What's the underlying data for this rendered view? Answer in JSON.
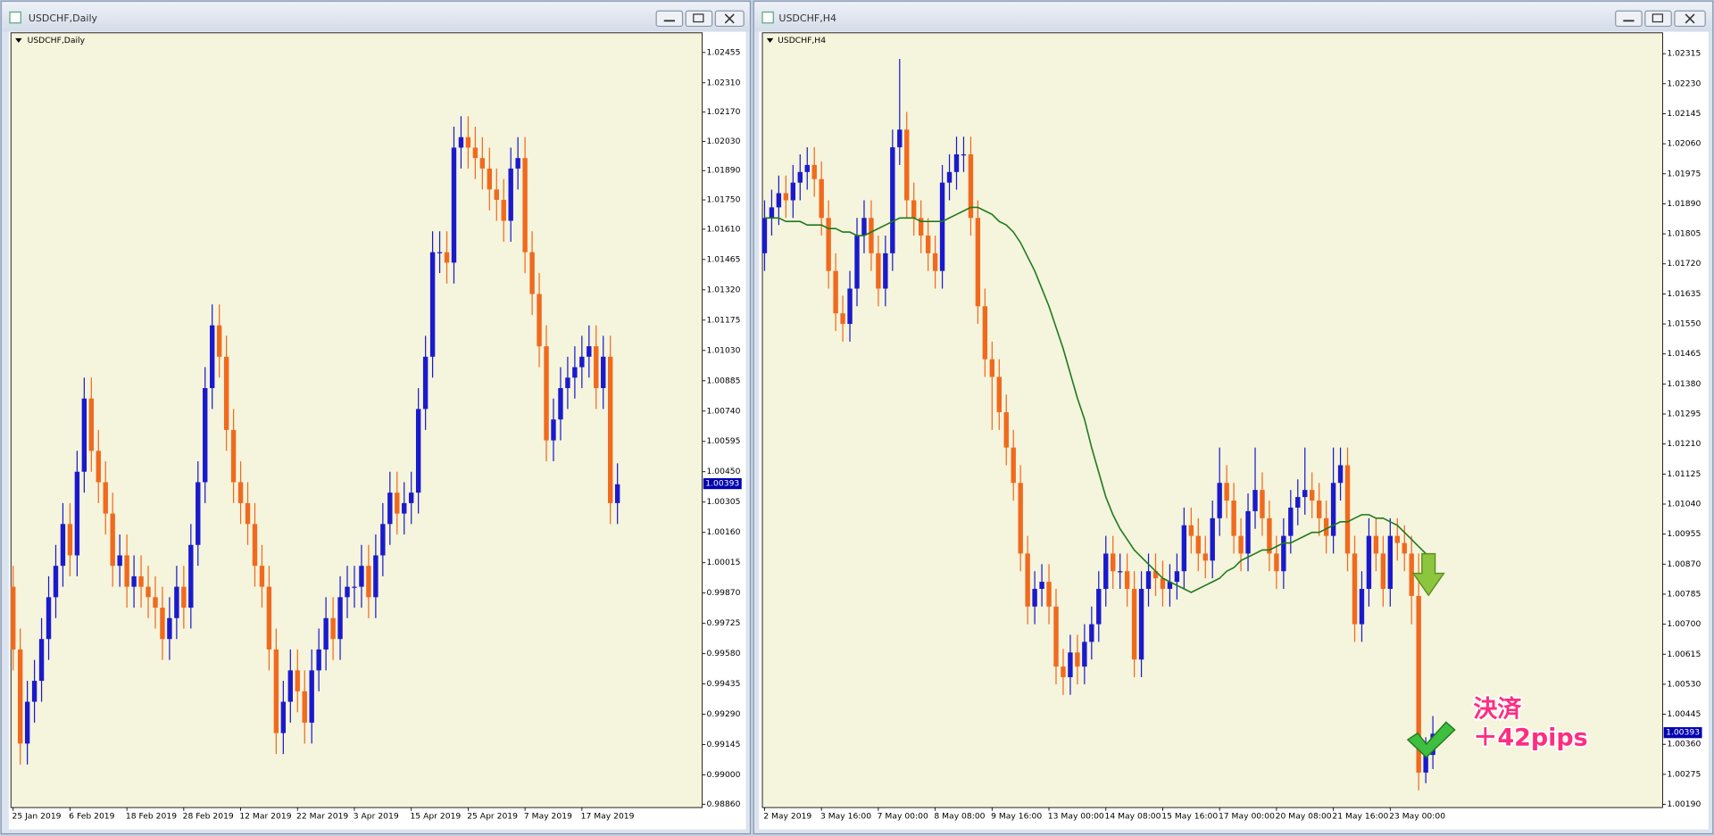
{
  "window_titles": [
    "USDCHF,Daily",
    "USDCHF,H4"
  ],
  "annotation": {
    "lines": [
      "決済",
      "＋42pips"
    ]
  },
  "chart_data": [
    {
      "type": "candlestick",
      "title": "USDCHF,Daily",
      "x": [
        "25 Jan 2019",
        null,
        null,
        null,
        null,
        null,
        null,
        null,
        "6 Feb 2019",
        null,
        null,
        null,
        null,
        null,
        null,
        null,
        "18 Feb 2019",
        null,
        null,
        null,
        null,
        null,
        null,
        null,
        "28 Feb 2019",
        null,
        null,
        null,
        null,
        null,
        null,
        null,
        "12 Mar 2019",
        null,
        null,
        null,
        null,
        null,
        null,
        null,
        "22 Mar 2019",
        null,
        null,
        null,
        null,
        null,
        null,
        null,
        "3 Apr 2019",
        null,
        null,
        null,
        null,
        null,
        null,
        null,
        "15 Apr 2019",
        null,
        null,
        null,
        null,
        null,
        null,
        null,
        "25 Apr 2019",
        null,
        null,
        null,
        null,
        null,
        null,
        null,
        "7 May 2019",
        null,
        null,
        null,
        null,
        null,
        null,
        null,
        "17 May 2019",
        null,
        null,
        null,
        null,
        null
      ],
      "open": [
        0.999,
        0.996,
        0.9915,
        0.9935,
        0.9945,
        0.9965,
        0.9985,
        1.0,
        1.002,
        1.0005,
        1.0045,
        1.008,
        1.0055,
        1.004,
        1.0025,
        1.0,
        1.0005,
        0.999,
        0.9995,
        0.999,
        0.9985,
        0.998,
        0.9965,
        0.9975,
        0.999,
        0.998,
        1.001,
        1.004,
        1.0085,
        1.0115,
        1.01,
        1.0065,
        1.004,
        1.003,
        1.002,
        1.0,
        0.999,
        0.996,
        0.992,
        0.9935,
        0.995,
        0.994,
        0.9925,
        0.995,
        0.996,
        0.9975,
        0.9965,
        0.9985,
        0.999,
        0.999,
        1.0,
        0.9985,
        1.0005,
        1.002,
        1.0035,
        1.0025,
        1.003,
        1.0035,
        1.0075,
        1.01,
        1.015,
        1.015,
        1.0145,
        1.02,
        1.0205,
        1.02,
        1.0195,
        1.019,
        1.018,
        1.0175,
        1.0165,
        1.019,
        1.0195,
        1.015,
        1.013,
        1.0105,
        1.006,
        1.007,
        1.0085,
        1.009,
        1.0095,
        1.01,
        1.0105,
        1.0085,
        1.01,
        1.003
      ],
      "high": [
        1.0,
        0.997,
        0.9945,
        0.9955,
        0.9975,
        0.9995,
        1.001,
        1.003,
        1.003,
        1.0055,
        1.009,
        1.009,
        1.0065,
        1.005,
        1.0035,
        1.0015,
        1.0015,
        1.0005,
        1.0005,
        1.0,
        0.9995,
        0.999,
        0.9985,
        1.0,
        1.0,
        1.002,
        1.005,
        1.0095,
        1.0125,
        1.0125,
        1.011,
        1.0075,
        1.005,
        1.004,
        1.003,
        1.001,
        1.0,
        0.997,
        0.9945,
        0.996,
        0.996,
        0.995,
        0.996,
        0.997,
        0.9985,
        0.9985,
        0.9995,
        1.0,
        1.0,
        1.001,
        1.001,
        1.0015,
        1.003,
        1.0045,
        1.0045,
        1.004,
        1.0045,
        1.0085,
        1.011,
        1.016,
        1.016,
        1.016,
        1.021,
        1.0215,
        1.0215,
        1.021,
        1.0205,
        1.02,
        1.019,
        1.0185,
        1.02,
        1.0205,
        1.0205,
        1.016,
        1.014,
        1.0115,
        1.008,
        1.0095,
        1.01,
        1.0105,
        1.011,
        1.0115,
        1.0115,
        1.011,
        1.011,
        1.0049
      ],
      "low": [
        0.995,
        0.9905,
        0.9905,
        0.9925,
        0.9935,
        0.9955,
        0.9975,
        0.999,
        0.9995,
        0.9995,
        1.0035,
        1.0045,
        1.003,
        1.0015,
        0.999,
        0.999,
        0.998,
        0.998,
        0.998,
        0.9975,
        0.997,
        0.9955,
        0.9955,
        0.9965,
        0.997,
        0.997,
        1.0,
        1.003,
        1.0075,
        1.009,
        1.0055,
        1.003,
        1.002,
        1.001,
        0.999,
        0.998,
        0.995,
        0.991,
        0.991,
        0.9925,
        0.993,
        0.9915,
        0.9915,
        0.994,
        0.995,
        0.9955,
        0.9955,
        0.9975,
        0.998,
        0.998,
        0.9975,
        0.9975,
        0.9995,
        1.001,
        1.0015,
        1.0015,
        1.002,
        1.0025,
        1.0065,
        1.009,
        1.014,
        1.0135,
        1.0135,
        1.019,
        1.019,
        1.0185,
        1.018,
        1.017,
        1.0165,
        1.0155,
        1.0155,
        1.018,
        1.014,
        1.012,
        1.0095,
        1.005,
        1.005,
        1.006,
        1.0075,
        1.008,
        1.0085,
        1.009,
        1.0075,
        1.0075,
        1.002,
        1.002
      ],
      "close": [
        0.996,
        0.9915,
        0.9935,
        0.9945,
        0.9965,
        0.9985,
        1.0,
        1.002,
        1.0005,
        1.0045,
        1.008,
        1.0055,
        1.004,
        1.0025,
        1.0,
        1.0005,
        0.999,
        0.9995,
        0.999,
        0.9985,
        0.998,
        0.9965,
        0.9975,
        0.999,
        0.998,
        1.001,
        1.004,
        1.0085,
        1.0115,
        1.01,
        1.0065,
        1.004,
        1.003,
        1.002,
        1.0,
        0.999,
        0.996,
        0.992,
        0.9935,
        0.995,
        0.994,
        0.9925,
        0.995,
        0.996,
        0.9975,
        0.9965,
        0.9985,
        0.999,
        0.999,
        1.0,
        0.9985,
        1.0005,
        1.002,
        1.0035,
        1.0025,
        1.003,
        1.0035,
        1.0075,
        1.01,
        1.015,
        1.015,
        1.0145,
        1.02,
        1.0205,
        1.02,
        1.0195,
        1.019,
        1.018,
        1.0175,
        1.0165,
        1.019,
        1.0195,
        1.015,
        1.013,
        1.0105,
        1.006,
        1.007,
        1.0085,
        1.009,
        1.0095,
        1.01,
        1.0105,
        1.0085,
        1.01,
        1.003,
        1.0039
      ],
      "up_color": "#1a1acd",
      "down_color": "#f06a1e",
      "ylim": [
        0.98844,
        1.02549
      ],
      "yticks": [
        1.02455,
        {
          "value": 1.0231,
          "label": "1.02310"
        },
        {
          "value": 1.0217,
          "label": "1.02170"
        },
        {
          "value": 1.0203,
          "label": "1.02030"
        },
        {
          "value": 1.0189,
          "label": "1.01890"
        },
        {
          "value": 1.0175,
          "label": "1.01750"
        },
        {
          "value": 1.0161,
          "label": "1.01610"
        },
        1.01465,
        {
          "value": 1.0132,
          "label": "1.01320"
        },
        1.01175,
        {
          "value": 1.0103,
          "label": "1.01030"
        },
        1.00885,
        {
          "value": 1.0074,
          "label": "1.00740"
        },
        1.00595,
        {
          "value": 1.0045,
          "label": "1.00450"
        },
        1.00305,
        {
          "value": 1.0016,
          "label": "1.00160"
        },
        1.00015,
        {
          "value": 0.9987,
          "label": "0.99870"
        },
        0.99725,
        {
          "value": 0.9958,
          "label": "0.99580"
        },
        0.99435,
        {
          "value": 0.9929,
          "label": "0.99290"
        },
        0.99145,
        {
          "value": 0.99,
          "label": "0.99000"
        },
        {
          "value": 0.9886,
          "label": "0.98860"
        }
      ],
      "last_price": 1.00393,
      "last_price_color": "#0000b0"
    },
    {
      "type": "candlestick",
      "title": "USDCHF,H4",
      "x": [
        "2 May 2019",
        null,
        null,
        null,
        null,
        null,
        null,
        null,
        "3 May 16:00",
        null,
        null,
        null,
        null,
        null,
        null,
        null,
        "7 May 00:00",
        null,
        null,
        null,
        null,
        null,
        null,
        null,
        "8 May 08:00",
        null,
        null,
        null,
        null,
        null,
        null,
        null,
        "9 May 16:00",
        null,
        null,
        null,
        null,
        null,
        null,
        null,
        "13 May 00:00",
        null,
        null,
        null,
        null,
        null,
        null,
        null,
        "14 May 08:00",
        null,
        null,
        null,
        null,
        null,
        null,
        null,
        "15 May 16:00",
        null,
        null,
        null,
        null,
        null,
        null,
        null,
        "17 May 00:00",
        null,
        null,
        null,
        null,
        null,
        null,
        null,
        "20 May 08:00",
        null,
        null,
        null,
        null,
        null,
        null,
        null,
        "21 May 16:00",
        null,
        null,
        null,
        null,
        null,
        null,
        null,
        "23 May 00:00",
        null,
        null,
        null,
        null,
        null,
        null
      ],
      "open": [
        1.0175,
        1.0185,
        1.0188,
        1.0192,
        1.019,
        1.0195,
        1.0198,
        1.02,
        1.0196,
        1.0185,
        1.017,
        1.0158,
        1.0155,
        1.0165,
        1.018,
        1.0185,
        1.0175,
        1.0165,
        1.0175,
        1.0205,
        1.021,
        1.019,
        1.0185,
        1.018,
        1.0175,
        1.017,
        1.0195,
        1.0198,
        1.0203,
        1.0203,
        1.0185,
        1.016,
        1.0145,
        1.014,
        1.013,
        1.012,
        1.011,
        1.009,
        1.0075,
        1.008,
        1.0082,
        1.0075,
        1.0058,
        1.0055,
        1.0062,
        1.0058,
        1.0065,
        1.007,
        1.008,
        1.009,
        1.0085,
        1.0085,
        1.008,
        1.006,
        1.008,
        1.0085,
        1.0083,
        1.008,
        1.0082,
        1.0085,
        1.0098,
        1.0095,
        1.009,
        1.0088,
        1.01,
        1.011,
        1.0105,
        1.0095,
        1.009,
        1.0102,
        1.0108,
        1.01,
        1.009,
        1.0085,
        1.0095,
        1.0103,
        1.0106,
        1.0108,
        1.0105,
        1.01,
        1.0095,
        1.011,
        1.0115,
        1.009,
        1.007,
        1.008,
        1.0095,
        1.009,
        1.008,
        1.0095,
        1.0093,
        1.009,
        1.0078,
        1.0028,
        1.0033
      ],
      "high": [
        1.019,
        1.0193,
        1.0197,
        1.0197,
        1.02,
        1.0203,
        1.0205,
        1.0205,
        1.0201,
        1.019,
        1.0175,
        1.0163,
        1.017,
        1.0185,
        1.019,
        1.019,
        1.018,
        1.018,
        1.021,
        1.023,
        1.0215,
        1.0195,
        1.019,
        1.0185,
        1.018,
        1.02,
        1.0203,
        1.0208,
        1.0208,
        1.0208,
        1.019,
        1.0165,
        1.015,
        1.0145,
        1.0135,
        1.0125,
        1.0115,
        1.0095,
        1.0085,
        1.0087,
        1.0087,
        1.008,
        1.0063,
        1.0067,
        1.0067,
        1.007,
        1.0075,
        1.0085,
        1.0095,
        1.0095,
        1.009,
        1.009,
        1.0085,
        1.0085,
        1.009,
        1.009,
        1.0088,
        1.0087,
        1.009,
        1.0103,
        1.0103,
        1.01,
        1.0095,
        1.0105,
        1.012,
        1.0115,
        1.011,
        1.01,
        1.0107,
        1.012,
        1.0113,
        1.0105,
        1.0095,
        1.01,
        1.0108,
        1.0111,
        1.012,
        1.0113,
        1.011,
        1.0105,
        1.012,
        1.012,
        1.012,
        1.0095,
        1.0085,
        1.01,
        1.01,
        1.0095,
        1.01,
        1.01,
        1.0098,
        1.0095,
        1.009,
        1.0038,
        1.0044
      ],
      "low": [
        1.017,
        1.018,
        1.0183,
        1.0185,
        1.0185,
        1.019,
        1.0193,
        1.0191,
        1.018,
        1.0165,
        1.0153,
        1.015,
        1.015,
        1.016,
        1.0175,
        1.017,
        1.016,
        1.016,
        1.017,
        1.02,
        1.0185,
        1.018,
        1.0175,
        1.017,
        1.0165,
        1.0165,
        1.019,
        1.0193,
        1.0198,
        1.018,
        1.0155,
        1.014,
        1.0125,
        1.0125,
        1.0115,
        1.0105,
        1.0085,
        1.007,
        1.007,
        1.0075,
        1.007,
        1.0053,
        1.005,
        1.005,
        1.0053,
        1.0053,
        1.006,
        1.0065,
        1.0075,
        1.008,
        1.008,
        1.0075,
        1.0055,
        1.0055,
        1.0075,
        1.0078,
        1.0075,
        1.0075,
        1.0077,
        1.008,
        1.009,
        1.0085,
        1.0083,
        1.0083,
        1.0095,
        1.01,
        1.009,
        1.0085,
        1.0085,
        1.0097,
        1.0095,
        1.0085,
        1.008,
        1.008,
        1.009,
        1.0098,
        1.0101,
        1.01,
        1.0095,
        1.009,
        1.009,
        1.0105,
        1.0085,
        1.0065,
        1.0065,
        1.0075,
        1.0085,
        1.0075,
        1.0075,
        1.0088,
        1.0085,
        1.007,
        1.0023,
        1.0025,
        1.0029
      ],
      "close": [
        1.0185,
        1.0188,
        1.0192,
        1.019,
        1.0195,
        1.0198,
        1.02,
        1.0196,
        1.0185,
        1.017,
        1.0158,
        1.0155,
        1.0165,
        1.018,
        1.0185,
        1.0175,
        1.0165,
        1.0175,
        1.0205,
        1.021,
        1.019,
        1.0185,
        1.018,
        1.0175,
        1.017,
        1.0195,
        1.0198,
        1.0203,
        1.0203,
        1.0185,
        1.016,
        1.0145,
        1.014,
        1.013,
        1.012,
        1.011,
        1.009,
        1.0075,
        1.008,
        1.0082,
        1.0075,
        1.0058,
        1.0055,
        1.0062,
        1.0058,
        1.0065,
        1.007,
        1.008,
        1.009,
        1.0085,
        1.0085,
        1.008,
        1.006,
        1.008,
        1.0085,
        1.0083,
        1.008,
        1.0082,
        1.0085,
        1.0098,
        1.0095,
        1.009,
        1.0088,
        1.01,
        1.011,
        1.0105,
        1.0095,
        1.009,
        1.0102,
        1.0108,
        1.01,
        1.009,
        1.0085,
        1.0095,
        1.0103,
        1.0106,
        1.0108,
        1.0105,
        1.01,
        1.0095,
        1.011,
        1.0115,
        1.009,
        1.007,
        1.008,
        1.0095,
        1.009,
        1.008,
        1.0095,
        1.0093,
        1.009,
        1.0078,
        1.0028,
        1.0033,
        1.0039
      ],
      "overlay_line": {
        "color": "#1e7a1e",
        "values": [
          1.0185,
          1.0185,
          1.0185,
          1.0184,
          1.0184,
          1.0184,
          1.0183,
          1.0183,
          1.0183,
          1.0182,
          1.0182,
          1.0181,
          1.0181,
          1.018,
          1.018,
          1.0181,
          1.0182,
          1.0183,
          1.0184,
          1.0185,
          1.0185,
          1.0185,
          1.0184,
          1.0184,
          1.0184,
          1.0184,
          1.0185,
          1.0186,
          1.0187,
          1.0188,
          1.0188,
          1.0187,
          1.0186,
          1.0184,
          1.0183,
          1.0181,
          1.0178,
          1.0174,
          1.017,
          1.0165,
          1.016,
          1.0154,
          1.0148,
          1.0141,
          1.0134,
          1.0128,
          1.012,
          1.0113,
          1.0106,
          1.0101,
          1.0097,
          1.0094,
          1.0091,
          1.0089,
          1.0087,
          1.0085,
          1.0083,
          1.0082,
          1.0081,
          1.008,
          1.0079,
          1.008,
          1.0081,
          1.0082,
          1.0083,
          1.0085,
          1.0086,
          1.0088,
          1.0089,
          1.009,
          1.0091,
          1.0091,
          1.0092,
          1.0093,
          1.0093,
          1.0094,
          1.0095,
          1.0096,
          1.0096,
          1.0097,
          1.0098,
          1.0099,
          1.0099,
          1.01,
          1.0101,
          1.0101,
          1.01,
          1.01,
          1.0099,
          1.0098,
          1.0096,
          1.0094,
          1.0092,
          1.009,
          1.0088
        ]
      },
      "up_color": "#1a1acd",
      "down_color": "#f06a1e",
      "ylim": [
        1.00181,
        1.02374
      ],
      "yticks": [
        1.02315,
        {
          "value": 1.0223,
          "label": "1.02230"
        },
        1.02145,
        {
          "value": 1.0206,
          "label": "1.02060"
        },
        1.01975,
        {
          "value": 1.0189,
          "label": "1.01890"
        },
        1.01805,
        {
          "value": 1.0172,
          "label": "1.01720"
        },
        1.01635,
        {
          "value": 1.0155,
          "label": "1.01550"
        },
        1.01465,
        {
          "value": 1.0138,
          "label": "1.01380"
        },
        1.01295,
        {
          "value": 1.0121,
          "label": "1.01210"
        },
        1.01125,
        {
          "value": 1.0104,
          "label": "1.01040"
        },
        1.00955,
        {
          "value": 1.0087,
          "label": "1.00870"
        },
        1.00785,
        {
          "value": 1.007,
          "label": "1.00700"
        },
        1.00615,
        {
          "value": 1.0053,
          "label": "1.00530"
        },
        1.00445,
        {
          "value": 1.0036,
          "label": "1.00360"
        },
        1.00275,
        {
          "value": 1.0019,
          "label": "1.00190"
        }
      ],
      "last_price": 1.00393,
      "last_price_color": "#0000b0"
    }
  ]
}
